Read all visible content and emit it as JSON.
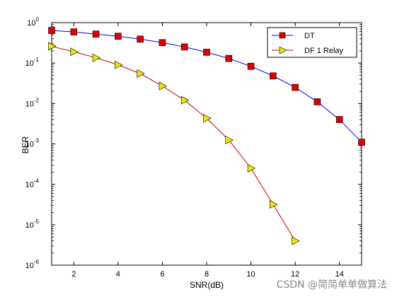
{
  "chart_data": {
    "type": "line",
    "xlabel": "SNR(dB)",
    "ylabel": "BER",
    "xlim": [
      1,
      15
    ],
    "ylim": [
      1e-06,
      1
    ],
    "yscale": "log",
    "xticks": [
      2,
      4,
      6,
      8,
      10,
      12,
      14
    ],
    "yticks": [
      {
        "value": 1e-06,
        "base": "10",
        "exp": "-6"
      },
      {
        "value": 1e-05,
        "base": "10",
        "exp": "-5"
      },
      {
        "value": 0.0001,
        "base": "10",
        "exp": "-4"
      },
      {
        "value": 0.001,
        "base": "10",
        "exp": "-3"
      },
      {
        "value": 0.01,
        "base": "10",
        "exp": "-2"
      },
      {
        "value": 0.1,
        "base": "10",
        "exp": "-1"
      },
      {
        "value": 1,
        "base": "10",
        "exp": "0"
      }
    ],
    "grid": false,
    "legend_position": "top-right",
    "series": [
      {
        "name": "DT",
        "color": "#0000ff",
        "marker": "square",
        "marker_color": "#e00000",
        "x": [
          1,
          2,
          3,
          4,
          5,
          6,
          7,
          8,
          9,
          10,
          11,
          12,
          13,
          14,
          15
        ],
        "y": [
          0.64,
          0.59,
          0.52,
          0.46,
          0.39,
          0.32,
          0.25,
          0.185,
          0.13,
          0.083,
          0.048,
          0.025,
          0.011,
          0.004,
          0.0011
        ]
      },
      {
        "name": "DF 1 Relay",
        "color": "#d00000",
        "marker": "triangle-right",
        "marker_color": "#e8e800",
        "x": [
          1,
          2,
          3,
          4,
          5,
          6,
          7,
          8,
          9,
          10,
          11,
          12
        ],
        "y": [
          0.26,
          0.19,
          0.135,
          0.09,
          0.055,
          0.027,
          0.012,
          0.0043,
          0.00125,
          0.00025,
          3.2e-05,
          4e-06
        ]
      }
    ]
  },
  "watermark": "CSDN @简简单单做算法"
}
